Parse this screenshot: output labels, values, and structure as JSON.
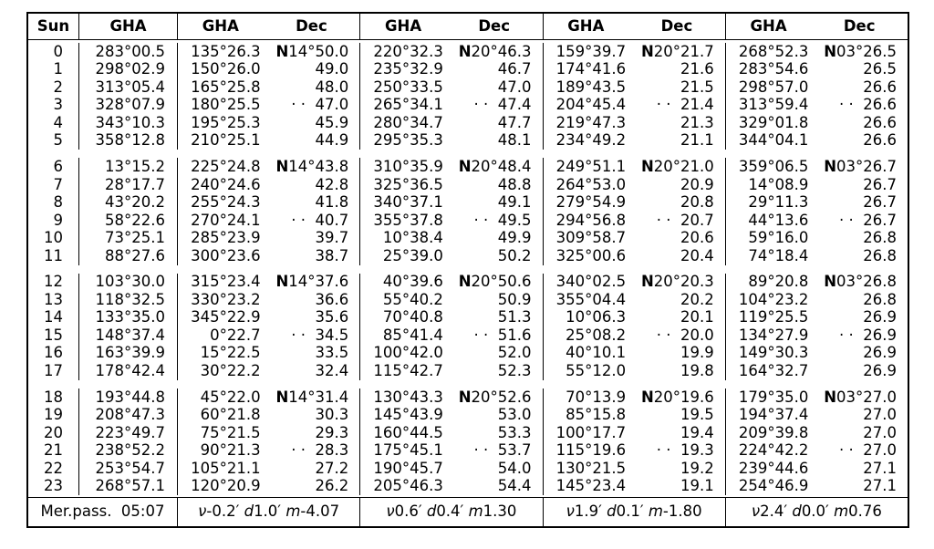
{
  "colors": {
    "background": "#ffffff",
    "text": "#000000",
    "border": "#000000"
  },
  "header": {
    "hour": "Sun",
    "gha": "GHA",
    "dec": "Dec"
  },
  "hours": [
    "0",
    "1",
    "2",
    "3",
    "4",
    "5",
    "6",
    "7",
    "8",
    "9",
    "10",
    "11",
    "12",
    "13",
    "14",
    "15",
    "16",
    "17",
    "18",
    "19",
    "20",
    "21",
    "22",
    "23"
  ],
  "sun": {
    "gha": [
      "283°00.5",
      "298°02.9",
      "313°05.4",
      "328°07.9",
      "343°10.3",
      "358°12.8",
      "13°15.2",
      "28°17.7",
      "43°20.2",
      "58°22.6",
      "73°25.1",
      "88°27.6",
      "103°30.0",
      "118°32.5",
      "133°35.0",
      "148°37.4",
      "163°39.9",
      "178°42.4",
      "193°44.8",
      "208°47.3",
      "223°49.7",
      "238°52.2",
      "253°54.7",
      "268°57.1"
    ]
  },
  "planets": [
    {
      "gha": [
        "135°26.3",
        "150°26.0",
        "165°25.8",
        "180°25.5",
        "195°25.3",
        "210°25.1",
        "225°24.8",
        "240°24.6",
        "255°24.3",
        "270°24.1",
        "285°23.9",
        "300°23.6",
        "315°23.4",
        "330°23.2",
        "345°22.9",
        "0°22.7",
        "15°22.5",
        "30°22.2",
        "45°22.0",
        "60°21.8",
        "75°21.5",
        "90°21.3",
        "105°21.1",
        "120°20.9"
      ],
      "dec": [
        "N14°50.0",
        "49.0",
        "48.0",
        "· ·  47.0",
        "45.9",
        "44.9",
        "N14°43.8",
        "42.8",
        "41.8",
        "· ·  40.7",
        "39.7",
        "38.7",
        "N14°37.6",
        "36.6",
        "35.6",
        "· ·  34.5",
        "33.5",
        "32.4",
        "N14°31.4",
        "30.3",
        "29.3",
        "· ·  28.3",
        "27.2",
        "26.2"
      ]
    },
    {
      "gha": [
        "220°32.3",
        "235°32.9",
        "250°33.5",
        "265°34.1",
        "280°34.7",
        "295°35.3",
        "310°35.9",
        "325°36.5",
        "340°37.1",
        "355°37.8",
        "10°38.4",
        "25°39.0",
        "40°39.6",
        "55°40.2",
        "70°40.8",
        "85°41.4",
        "100°42.0",
        "115°42.7",
        "130°43.3",
        "145°43.9",
        "160°44.5",
        "175°45.1",
        "190°45.7",
        "205°46.3"
      ],
      "dec": [
        "N20°46.3",
        "46.7",
        "47.0",
        "· ·  47.4",
        "47.7",
        "48.1",
        "N20°48.4",
        "48.8",
        "49.1",
        "· ·  49.5",
        "49.9",
        "50.2",
        "N20°50.6",
        "50.9",
        "51.3",
        "· ·  51.6",
        "52.0",
        "52.3",
        "N20°52.6",
        "53.0",
        "53.3",
        "· ·  53.7",
        "54.0",
        "54.4"
      ]
    },
    {
      "gha": [
        "159°39.7",
        "174°41.6",
        "189°43.5",
        "204°45.4",
        "219°47.3",
        "234°49.2",
        "249°51.1",
        "264°53.0",
        "279°54.9",
        "294°56.8",
        "309°58.7",
        "325°00.6",
        "340°02.5",
        "355°04.4",
        "10°06.3",
        "25°08.2",
        "40°10.1",
        "55°12.0",
        "70°13.9",
        "85°15.8",
        "100°17.7",
        "115°19.6",
        "130°21.5",
        "145°23.4"
      ],
      "dec": [
        "N20°21.7",
        "21.6",
        "21.5",
        "· ·  21.4",
        "21.3",
        "21.1",
        "N20°21.0",
        "20.9",
        "20.8",
        "· ·  20.7",
        "20.6",
        "20.4",
        "N20°20.3",
        "20.2",
        "20.1",
        "· ·  20.0",
        "19.9",
        "19.8",
        "N20°19.6",
        "19.5",
        "19.4",
        "· ·  19.3",
        "19.2",
        "19.1"
      ]
    },
    {
      "gha": [
        "268°52.3",
        "283°54.6",
        "298°57.0",
        "313°59.4",
        "329°01.8",
        "344°04.1",
        "359°06.5",
        "14°08.9",
        "29°11.3",
        "44°13.6",
        "59°16.0",
        "74°18.4",
        "89°20.8",
        "104°23.2",
        "119°25.5",
        "134°27.9",
        "149°30.3",
        "164°32.7",
        "179°35.0",
        "194°37.4",
        "209°39.8",
        "224°42.2",
        "239°44.6",
        "254°46.9"
      ],
      "dec": [
        "N03°26.5",
        "26.5",
        "26.6",
        "· ·  26.6",
        "26.6",
        "26.6",
        "N03°26.7",
        "26.7",
        "26.7",
        "· ·  26.7",
        "26.8",
        "26.8",
        "N03°26.8",
        "26.8",
        "26.9",
        "· ·  26.9",
        "26.9",
        "26.9",
        "N03°27.0",
        "27.0",
        "27.0",
        "· ·  27.0",
        "27.1",
        "27.1"
      ]
    }
  ],
  "footer": {
    "merpass": "Mer.pass.  05:07",
    "notes": [
      "ν -0.2′ d 1.0′ m -4.07",
      "ν 0.6′ d 0.4′ m 1.30",
      "ν 1.9′ d 0.1′ m -1.80",
      "ν 2.4′ d 0.0′ m 0.76"
    ]
  }
}
